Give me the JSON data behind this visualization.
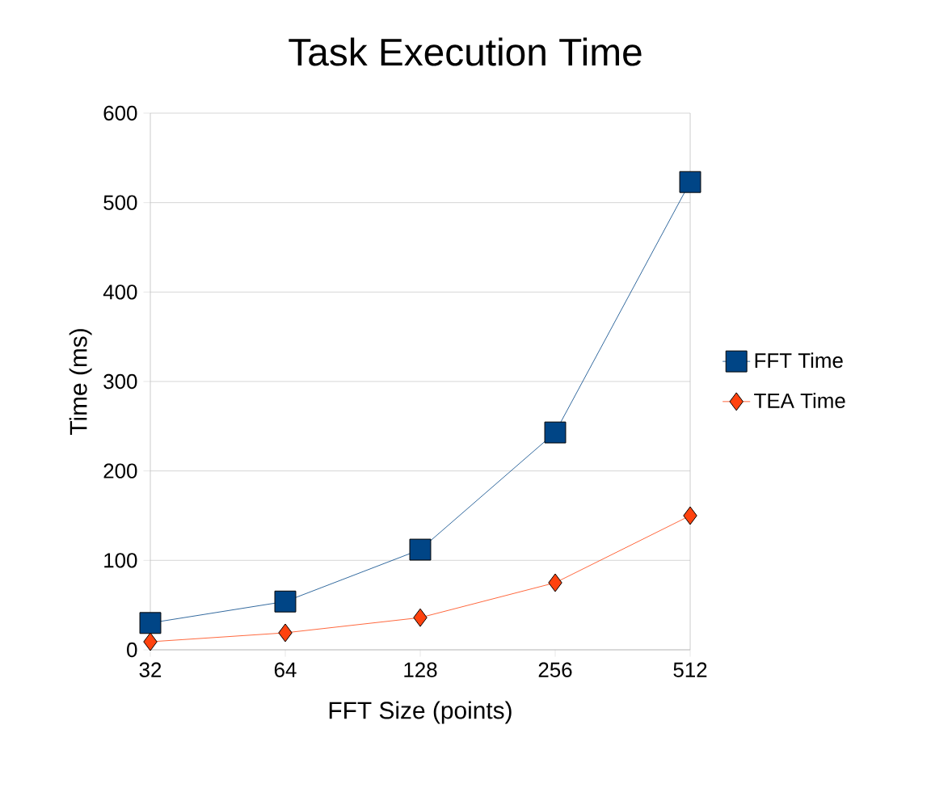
{
  "chart_data": {
    "type": "line",
    "title": "Task Execution Time",
    "xlabel": "FFT Size (points)",
    "ylabel": "Time (ms)",
    "categories": [
      "32",
      "64",
      "128",
      "256",
      "512"
    ],
    "series": [
      {
        "name": "FFT Time",
        "color": "#004586",
        "marker": "square",
        "values": [
          30,
          54,
          112,
          243,
          523
        ]
      },
      {
        "name": "TEA Time",
        "color": "#ff420e",
        "marker": "diamond",
        "values": [
          9,
          19,
          36,
          75,
          150
        ]
      }
    ],
    "ylim": [
      0,
      600
    ],
    "yticks": [
      0,
      100,
      200,
      300,
      400,
      500,
      600
    ],
    "grid": "y",
    "legend": "right"
  }
}
